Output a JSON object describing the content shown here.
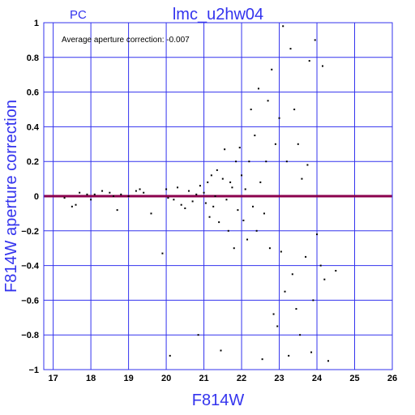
{
  "chart_data": {
    "type": "scatter",
    "title": "lmc_u2hw04",
    "corner_label": "PC",
    "annotation": "Average aperture correction: -0.007",
    "xlabel": "F814W",
    "ylabel": "F814W aperture correction",
    "xlim": [
      16.75,
      26
    ],
    "ylim": [
      -1,
      1
    ],
    "x_ticks": [
      17,
      18,
      19,
      20,
      21,
      22,
      23,
      24,
      25,
      26
    ],
    "y_ticks": [
      -1,
      -0.8,
      -0.6,
      -0.4,
      -0.2,
      0,
      0.2,
      0.4,
      0.6,
      0.8,
      1
    ],
    "x_tick_labels": [
      "17",
      "18",
      "19",
      "20",
      "21",
      "22",
      "23",
      "24",
      "25",
      "26"
    ],
    "y_tick_labels": [
      "−1",
      "−0.8",
      "−0.6",
      "−0.4",
      "−0.2",
      "0",
      "0.2",
      "0.4",
      "0.6",
      "0.8",
      "1"
    ],
    "reference_line_y": 0,
    "grid": true,
    "colors": {
      "axes": "#3333ee",
      "points": "#000000",
      "reference_line": "#8b004d"
    },
    "series": [
      {
        "points": [
          [
            17.3,
            -0.01
          ],
          [
            17.5,
            -0.06
          ],
          [
            17.6,
            -0.05
          ],
          [
            17.7,
            0.02
          ],
          [
            17.9,
            0.01
          ],
          [
            18.0,
            -0.02
          ],
          [
            18.1,
            0.01
          ],
          [
            18.3,
            0.03
          ],
          [
            18.5,
            0.02
          ],
          [
            18.6,
            0.0
          ],
          [
            18.7,
            -0.08
          ],
          [
            18.8,
            0.01
          ],
          [
            19.0,
            0.0
          ],
          [
            19.2,
            0.03
          ],
          [
            19.3,
            0.04
          ],
          [
            19.4,
            0.02
          ],
          [
            19.6,
            -0.1
          ],
          [
            19.9,
            -0.33
          ],
          [
            20.0,
            0.04
          ],
          [
            20.05,
            -0.01
          ],
          [
            20.1,
            -0.92
          ],
          [
            20.2,
            -0.02
          ],
          [
            20.3,
            0.05
          ],
          [
            20.4,
            -0.05
          ],
          [
            20.5,
            -0.07
          ],
          [
            20.6,
            0.03
          ],
          [
            20.7,
            -0.03
          ],
          [
            20.8,
            0.01
          ],
          [
            20.85,
            -0.8
          ],
          [
            20.9,
            0.06
          ],
          [
            21.0,
            0.02
          ],
          [
            21.05,
            -0.04
          ],
          [
            21.1,
            0.08
          ],
          [
            21.15,
            -0.12
          ],
          [
            21.2,
            0.12
          ],
          [
            21.25,
            -0.06
          ],
          [
            21.3,
            0.0
          ],
          [
            21.35,
            0.15
          ],
          [
            21.4,
            -0.15
          ],
          [
            21.45,
            -0.89
          ],
          [
            21.5,
            0.1
          ],
          [
            21.55,
            0.27
          ],
          [
            21.6,
            -0.02
          ],
          [
            21.65,
            -0.2
          ],
          [
            21.7,
            0.08
          ],
          [
            21.75,
            0.05
          ],
          [
            21.8,
            -0.3
          ],
          [
            21.85,
            0.2
          ],
          [
            21.9,
            -0.08
          ],
          [
            21.95,
            0.28
          ],
          [
            22.0,
            0.12
          ],
          [
            22.05,
            -0.14
          ],
          [
            22.1,
            0.04
          ],
          [
            22.15,
            -0.25
          ],
          [
            22.2,
            0.2
          ],
          [
            22.25,
            0.5
          ],
          [
            22.3,
            -0.06
          ],
          [
            22.35,
            0.35
          ],
          [
            22.4,
            -0.2
          ],
          [
            22.45,
            0.62
          ],
          [
            22.5,
            0.08
          ],
          [
            22.55,
            -0.94
          ],
          [
            22.6,
            -0.1
          ],
          [
            22.65,
            0.2
          ],
          [
            22.7,
            0.55
          ],
          [
            22.75,
            -0.3
          ],
          [
            22.8,
            0.73
          ],
          [
            22.85,
            -0.68
          ],
          [
            22.9,
            0.3
          ],
          [
            22.95,
            -0.75
          ],
          [
            23.0,
            0.45
          ],
          [
            23.05,
            -0.32
          ],
          [
            23.1,
            0.98
          ],
          [
            23.15,
            -0.55
          ],
          [
            23.2,
            0.2
          ],
          [
            23.25,
            -0.92
          ],
          [
            23.3,
            0.85
          ],
          [
            23.35,
            -0.45
          ],
          [
            23.4,
            0.5
          ],
          [
            23.45,
            -0.65
          ],
          [
            23.5,
            0.3
          ],
          [
            23.55,
            -0.8
          ],
          [
            23.6,
            0.1
          ],
          [
            23.7,
            -0.35
          ],
          [
            23.75,
            0.18
          ],
          [
            23.8,
            0.78
          ],
          [
            23.85,
            -0.9
          ],
          [
            23.9,
            -0.6
          ],
          [
            23.95,
            0.9
          ],
          [
            24.0,
            -0.22
          ],
          [
            24.1,
            -0.4
          ],
          [
            24.15,
            0.75
          ],
          [
            24.2,
            -0.48
          ],
          [
            24.3,
            -0.95
          ],
          [
            24.5,
            -0.43
          ]
        ]
      }
    ]
  }
}
